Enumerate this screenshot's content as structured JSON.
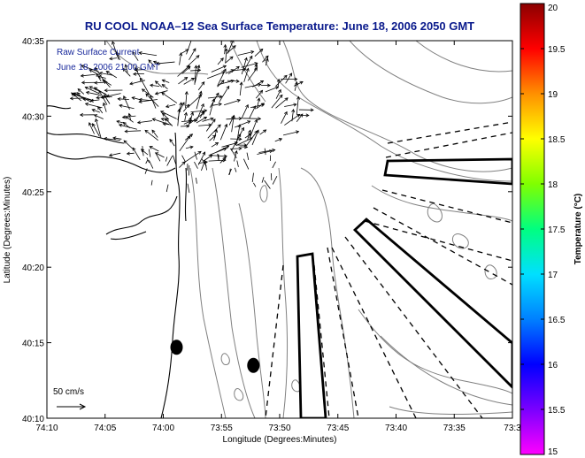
{
  "chart_data": {
    "type": "other",
    "title": "RU COOL  NOAA–12  Sea Surface Temperature:  June 18, 2006 2050 GMT",
    "xlabel": "Longitude (Degrees:Minutes)",
    "ylabel": "Latitude (Degrees:Minutes)",
    "x_ticks": [
      "74:10",
      "74:05",
      "74:00",
      "73:55",
      "73:50",
      "73:45",
      "73:40",
      "73:35",
      "73:3"
    ],
    "y_ticks": [
      "40:10",
      "40:15",
      "40:20",
      "40:25",
      "40:30",
      "40:35"
    ],
    "colorbar": {
      "label": "Temperature (°C)",
      "ticks": [
        "15",
        "15.5",
        "16",
        "16.5",
        "17",
        "17.5",
        "18",
        "18.5",
        "19",
        "19.5",
        "20"
      ],
      "range": [
        15,
        20
      ],
      "stops": [
        "#ff00ff",
        "#7a00ff",
        "#0000ff",
        "#0080ff",
        "#00e0ff",
        "#00ff80",
        "#80ff00",
        "#ffff00",
        "#ff9000",
        "#ff0000",
        "#8b0000"
      ]
    },
    "annotations": {
      "legend_line1": "Raw Surface Current",
      "legend_line2": "June 18, 2006 21:00 GMT",
      "scale_label": "50 cm/s"
    },
    "markers": [
      {
        "lon": -73.981,
        "lat": 40.245,
        "shape": "filled-ellipse"
      },
      {
        "lon": -73.871,
        "lat": 40.225,
        "shape": "filled-ellipse"
      }
    ]
  }
}
